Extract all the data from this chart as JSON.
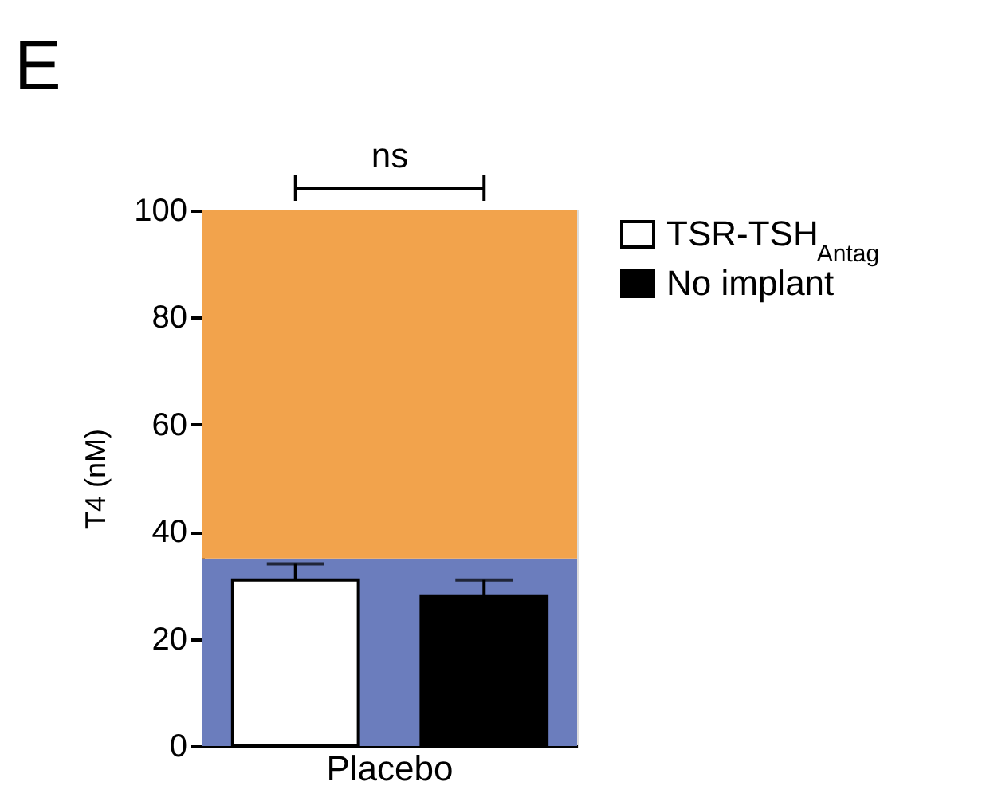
{
  "chart_data": {
    "type": "bar",
    "title": "E",
    "ylabel": "T4 (nM)",
    "categories": [
      "Placebo"
    ],
    "series": [
      {
        "name": "TSR-TSH$_{Antag}$",
        "color": "#ffffff",
        "values": [
          31
        ],
        "errors": [
          [
            31,
            34
          ]
        ]
      },
      {
        "name": "No implant",
        "color": "#000000",
        "values": [
          28
        ],
        "errors": [
          [
            28,
            31
          ]
        ]
      }
    ],
    "ylim": [
      0,
      100
    ],
    "yticks": [
      0,
      20,
      40,
      60,
      80,
      100
    ],
    "bands": [
      {
        "axis": "y",
        "from": 0,
        "to": 35,
        "color": "#6b7dbd"
      },
      {
        "axis": "y",
        "from": 35,
        "to": 100,
        "color": "#f2a34c"
      }
    ],
    "annotations": [
      "ns"
    ],
    "grid": false,
    "legend": "right"
  }
}
